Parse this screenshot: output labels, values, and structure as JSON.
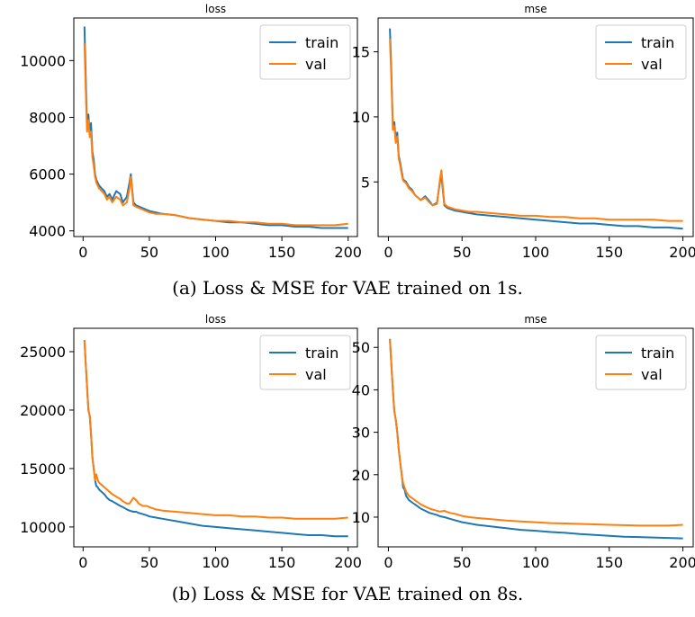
{
  "colors": {
    "train": "#1f77b4",
    "val": "#ff7f0e"
  },
  "captions": {
    "a": "(a) Loss & MSE for VAE trained on 1s.",
    "b": "(b) Loss & MSE for VAE trained on 8s."
  },
  "chart_data": [
    {
      "type": "line",
      "title": "loss",
      "xlim": [
        -7,
        207
      ],
      "ylim": [
        3800,
        11500
      ],
      "xticks": [
        0,
        50,
        100,
        150,
        200
      ],
      "yticks": [
        4000,
        6000,
        8000,
        10000
      ],
      "legend": "top-right",
      "series": [
        {
          "name": "train",
          "x": [
            1,
            2,
            3,
            4,
            5,
            6,
            7,
            8,
            9,
            10,
            12,
            14,
            16,
            18,
            20,
            22,
            25,
            28,
            30,
            33,
            35,
            36,
            38,
            40,
            45,
            50,
            55,
            60,
            70,
            80,
            90,
            100,
            110,
            120,
            130,
            140,
            150,
            160,
            170,
            180,
            190,
            200
          ],
          "values": [
            11200,
            9500,
            7600,
            8100,
            7400,
            7800,
            6800,
            6500,
            6000,
            5800,
            5600,
            5500,
            5400,
            5200,
            5300,
            5100,
            5400,
            5300,
            5000,
            5200,
            5700,
            6000,
            5000,
            4900,
            4800,
            4700,
            4650,
            4600,
            4550,
            4450,
            4400,
            4350,
            4300,
            4300,
            4250,
            4200,
            4200,
            4150,
            4150,
            4100,
            4100,
            4100
          ]
        },
        {
          "name": "val",
          "x": [
            1,
            2,
            3,
            4,
            5,
            6,
            7,
            8,
            9,
            10,
            12,
            14,
            16,
            18,
            20,
            22,
            25,
            28,
            30,
            33,
            35,
            36,
            38,
            40,
            45,
            50,
            55,
            60,
            70,
            80,
            90,
            100,
            110,
            120,
            130,
            140,
            150,
            160,
            170,
            180,
            190,
            200
          ],
          "values": [
            10600,
            9000,
            7500,
            7900,
            7300,
            7500,
            6600,
            6300,
            5900,
            5700,
            5500,
            5400,
            5300,
            5100,
            5200,
            5000,
            5200,
            5100,
            4900,
            5000,
            5500,
            5900,
            4900,
            4850,
            4750,
            4650,
            4600,
            4600,
            4550,
            4450,
            4400,
            4350,
            4350,
            4300,
            4300,
            4250,
            4250,
            4200,
            4200,
            4200,
            4200,
            4250
          ]
        }
      ]
    },
    {
      "type": "line",
      "title": "mse",
      "xlim": [
        -7,
        207
      ],
      "ylim": [
        0.8,
        17.6
      ],
      "xticks": [
        0,
        50,
        100,
        150,
        200
      ],
      "yticks": [
        5,
        10,
        15
      ],
      "legend": "top-right",
      "series": [
        {
          "name": "train",
          "x": [
            1,
            2,
            3,
            4,
            5,
            6,
            7,
            8,
            9,
            10,
            12,
            14,
            16,
            18,
            20,
            22,
            25,
            28,
            30,
            33,
            35,
            36,
            38,
            40,
            45,
            50,
            55,
            60,
            70,
            80,
            90,
            100,
            110,
            120,
            130,
            140,
            150,
            160,
            170,
            180,
            190,
            200
          ],
          "values": [
            16.8,
            13.5,
            9.2,
            9.6,
            8.2,
            8.8,
            7.0,
            6.5,
            5.8,
            5.2,
            5.0,
            4.6,
            4.4,
            4.0,
            3.8,
            3.6,
            3.9,
            3.5,
            3.2,
            3.4,
            5.0,
            5.5,
            3.2,
            3.0,
            2.8,
            2.7,
            2.6,
            2.5,
            2.4,
            2.3,
            2.2,
            2.1,
            2.0,
            1.9,
            1.8,
            1.8,
            1.7,
            1.6,
            1.6,
            1.5,
            1.5,
            1.4
          ]
        },
        {
          "name": "val",
          "x": [
            1,
            2,
            3,
            4,
            5,
            6,
            7,
            8,
            9,
            10,
            12,
            14,
            16,
            18,
            20,
            22,
            25,
            28,
            30,
            33,
            35,
            36,
            38,
            40,
            45,
            50,
            55,
            60,
            70,
            80,
            90,
            100,
            110,
            120,
            130,
            140,
            150,
            160,
            170,
            180,
            190,
            200
          ],
          "values": [
            16.0,
            13.0,
            9.0,
            9.3,
            8.0,
            8.5,
            6.8,
            6.3,
            5.6,
            5.1,
            4.9,
            4.5,
            4.3,
            4.0,
            3.8,
            3.6,
            3.8,
            3.4,
            3.2,
            3.3,
            5.2,
            5.9,
            3.3,
            3.1,
            2.9,
            2.8,
            2.7,
            2.7,
            2.6,
            2.5,
            2.4,
            2.4,
            2.3,
            2.3,
            2.2,
            2.2,
            2.1,
            2.1,
            2.1,
            2.1,
            2.0,
            2.0
          ]
        }
      ]
    },
    {
      "type": "line",
      "title": "loss",
      "xlim": [
        -7,
        207
      ],
      "ylim": [
        8300,
        27000
      ],
      "xticks": [
        0,
        50,
        100,
        150,
        200
      ],
      "yticks": [
        10000,
        15000,
        20000,
        25000
      ],
      "legend": "top-right",
      "series": [
        {
          "name": "train",
          "x": [
            1,
            2,
            3,
            4,
            5,
            6,
            7,
            8,
            9,
            10,
            11,
            12,
            14,
            16,
            18,
            20,
            22,
            25,
            28,
            30,
            33,
            35,
            38,
            40,
            42,
            45,
            48,
            50,
            55,
            60,
            70,
            80,
            90,
            100,
            110,
            120,
            130,
            140,
            150,
            160,
            170,
            180,
            190,
            200
          ],
          "values": [
            26000,
            24000,
            22000,
            20000,
            19500,
            18000,
            16000,
            15000,
            14000,
            13500,
            13400,
            13200,
            13000,
            12800,
            12500,
            12300,
            12200,
            12000,
            11800,
            11700,
            11500,
            11400,
            11300,
            11300,
            11200,
            11100,
            11000,
            10900,
            10800,
            10700,
            10500,
            10300,
            10100,
            10000,
            9900,
            9800,
            9700,
            9600,
            9500,
            9400,
            9300,
            9300,
            9200,
            9200
          ]
        },
        {
          "name": "val",
          "x": [
            1,
            2,
            3,
            4,
            5,
            6,
            7,
            8,
            9,
            10,
            11,
            12,
            14,
            16,
            18,
            20,
            22,
            25,
            28,
            30,
            33,
            35,
            38,
            40,
            42,
            45,
            48,
            50,
            55,
            60,
            70,
            80,
            90,
            100,
            110,
            120,
            130,
            140,
            150,
            160,
            170,
            180,
            190,
            200
          ],
          "values": [
            26000,
            24000,
            22000,
            20000,
            19500,
            18000,
            16000,
            15000,
            14000,
            14500,
            14000,
            13800,
            13600,
            13400,
            13200,
            13000,
            12800,
            12600,
            12400,
            12200,
            12000,
            12000,
            12500,
            12300,
            12000,
            11800,
            11800,
            11700,
            11500,
            11400,
            11300,
            11200,
            11100,
            11000,
            11000,
            10900,
            10900,
            10800,
            10800,
            10700,
            10700,
            10700,
            10700,
            10800
          ]
        }
      ]
    },
    {
      "type": "line",
      "title": "mse",
      "xlim": [
        -7,
        207
      ],
      "ylim": [
        3,
        54.5
      ],
      "xticks": [
        0,
        50,
        100,
        150,
        200
      ],
      "yticks": [
        10,
        20,
        30,
        40,
        50
      ],
      "legend": "top-right",
      "series": [
        {
          "name": "train",
          "x": [
            1,
            2,
            3,
            4,
            5,
            6,
            7,
            8,
            9,
            10,
            11,
            12,
            14,
            16,
            18,
            20,
            22,
            25,
            28,
            30,
            33,
            35,
            38,
            40,
            42,
            45,
            48,
            50,
            55,
            60,
            70,
            80,
            90,
            100,
            110,
            120,
            130,
            140,
            150,
            160,
            170,
            180,
            190,
            200
          ],
          "values": [
            52,
            46,
            40,
            35,
            33,
            30,
            26,
            23,
            20,
            17,
            16.5,
            15,
            14,
            13.5,
            13,
            12.5,
            12,
            11.5,
            11,
            10.8,
            10.5,
            10.2,
            10,
            9.8,
            9.6,
            9.3,
            9,
            8.8,
            8.5,
            8.2,
            7.8,
            7.4,
            7,
            6.8,
            6.5,
            6.3,
            6,
            5.8,
            5.6,
            5.4,
            5.3,
            5.2,
            5.1,
            5.0
          ]
        },
        {
          "name": "val",
          "x": [
            1,
            2,
            3,
            4,
            5,
            6,
            7,
            8,
            9,
            10,
            11,
            12,
            14,
            16,
            18,
            20,
            22,
            25,
            28,
            30,
            33,
            35,
            38,
            40,
            42,
            45,
            48,
            50,
            55,
            60,
            70,
            80,
            90,
            100,
            110,
            120,
            130,
            140,
            150,
            160,
            170,
            180,
            190,
            200
          ],
          "values": [
            52,
            46,
            40,
            35,
            33,
            30,
            26,
            23,
            20,
            18,
            17,
            16,
            15,
            14.5,
            14,
            13.5,
            13,
            12.5,
            12,
            11.8,
            11.5,
            11.3,
            11.5,
            11.2,
            11,
            10.8,
            10.5,
            10.3,
            10,
            9.8,
            9.5,
            9.2,
            9,
            8.8,
            8.6,
            8.5,
            8.4,
            8.3,
            8.2,
            8.1,
            8.0,
            8.0,
            8.0,
            8.2
          ]
        }
      ]
    }
  ]
}
